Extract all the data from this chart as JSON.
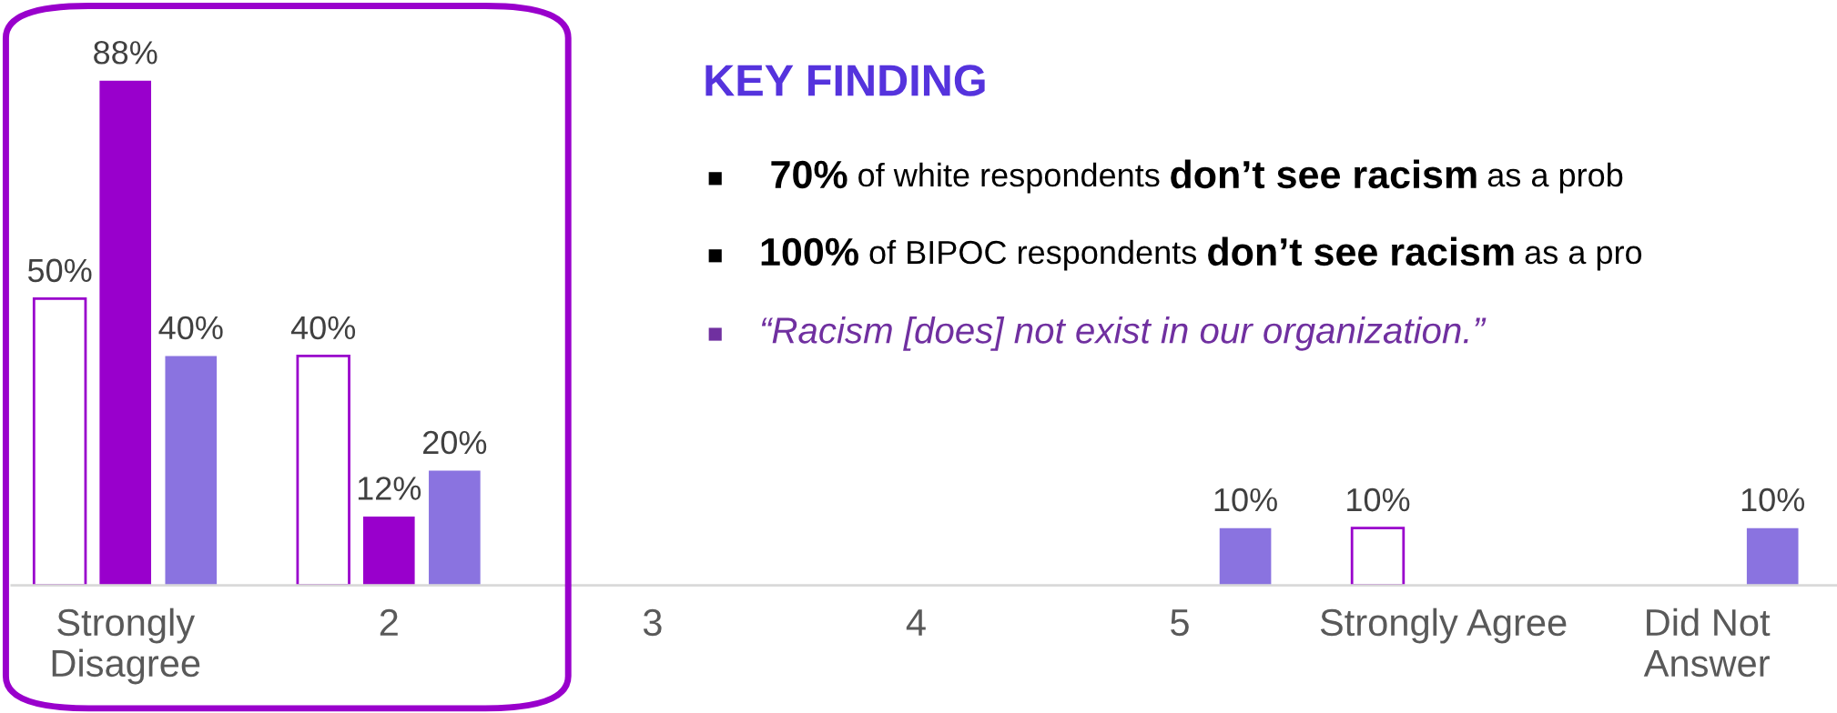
{
  "chart_data": {
    "type": "bar",
    "categories": [
      "Strongly\nDisagree",
      "2",
      "3",
      "4",
      "5",
      "Strongly Agree",
      "Did Not\nAnswer"
    ],
    "series": [
      {
        "color": "#ffffff",
        "values": [
          50,
          40,
          null,
          null,
          null,
          10,
          null
        ],
        "value_labels": [
          "50%",
          "40%",
          null,
          null,
          null,
          "10%",
          null
        ]
      },
      {
        "color": "#9900cc",
        "values": [
          88,
          12,
          null,
          null,
          null,
          null,
          null
        ],
        "value_labels": [
          "88%",
          "12%",
          null,
          null,
          null,
          null,
          null
        ]
      },
      {
        "color": "#8a73e0",
        "values": [
          40,
          20,
          null,
          null,
          10,
          null,
          10
        ],
        "value_labels": [
          "40%",
          "20%",
          null,
          null,
          "10%",
          null,
          "10%"
        ]
      }
    ],
    "annotations": [
      "KEY FINDING",
      "70%",
      " of white respondents ",
      "don’t see racism",
      " as a prob",
      "100%",
      " of BIPOC respondents ",
      "don’t see racism",
      " as a pro",
      "“Racism [does] not exist in our organization.”"
    ],
    "grid": false
  }
}
